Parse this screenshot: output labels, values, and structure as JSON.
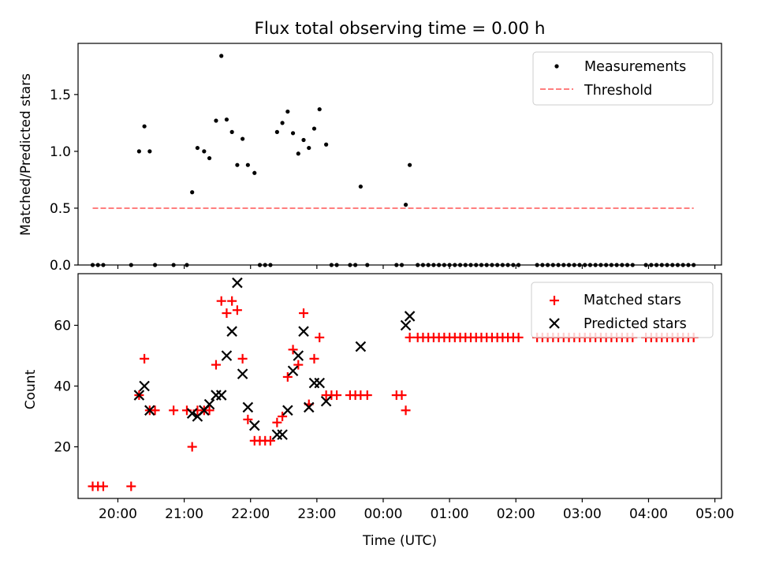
{
  "chart_data": [
    {
      "type": "scatter",
      "title": "Flux total observing time = 0.00 h",
      "xlabel": "",
      "ylabel": "Matched/Predicted stars",
      "xlim": [
        -0.6,
        9.1
      ],
      "ylim": [
        0,
        1.95
      ],
      "x_ticks": [
        0,
        1,
        2,
        3,
        4,
        5,
        6,
        7,
        8,
        9
      ],
      "y_ticks": [
        0.0,
        0.5,
        1.0,
        1.5
      ],
      "y_tick_labels": [
        "0.0",
        "0.5",
        "1.0",
        "1.5"
      ],
      "legend": {
        "position": "top-right",
        "entries": [
          {
            "label": "Measurements",
            "marker": "dot",
            "color": "#000000"
          },
          {
            "label": "Threshold",
            "marker": "dashed-line",
            "color": "#ff7f7f"
          }
        ]
      },
      "threshold": {
        "value": 0.5,
        "x_start": -0.38,
        "x_end": 8.68,
        "color": "#ff7f7f"
      },
      "series": [
        {
          "name": "Measurements",
          "color": "#000000",
          "points": [
            [
              -0.38,
              0
            ],
            [
              -0.3,
              0
            ],
            [
              -0.22,
              0
            ],
            [
              0.2,
              0
            ],
            [
              0.32,
              1.0
            ],
            [
              0.4,
              1.22
            ],
            [
              0.48,
              1.0
            ],
            [
              0.56,
              0
            ],
            [
              0.84,
              0
            ],
            [
              1.04,
              0
            ],
            [
              1.12,
              0.64
            ],
            [
              1.2,
              1.03
            ],
            [
              1.3,
              1.0
            ],
            [
              1.38,
              0.94
            ],
            [
              1.48,
              1.27
            ],
            [
              1.56,
              1.84
            ],
            [
              1.64,
              1.28
            ],
            [
              1.72,
              1.17
            ],
            [
              1.8,
              0.88
            ],
            [
              1.88,
              1.11
            ],
            [
              1.96,
              0.88
            ],
            [
              2.06,
              0.81
            ],
            [
              2.14,
              0
            ],
            [
              2.22,
              0
            ],
            [
              2.3,
              0
            ],
            [
              2.4,
              1.17
            ],
            [
              2.48,
              1.25
            ],
            [
              2.56,
              1.35
            ],
            [
              2.64,
              1.16
            ],
            [
              2.72,
              0.98
            ],
            [
              2.8,
              1.1
            ],
            [
              2.88,
              1.03
            ],
            [
              2.96,
              1.2
            ],
            [
              3.04,
              1.37
            ],
            [
              3.14,
              1.06
            ],
            [
              3.22,
              0
            ],
            [
              3.3,
              0
            ],
            [
              3.5,
              0
            ],
            [
              3.58,
              0
            ],
            [
              3.66,
              0.69
            ],
            [
              3.76,
              0
            ],
            [
              4.2,
              0
            ],
            [
              4.28,
              0
            ],
            [
              4.34,
              0.53
            ],
            [
              4.4,
              0.88
            ],
            [
              4.52,
              0
            ],
            [
              4.6,
              0
            ],
            [
              4.68,
              0
            ],
            [
              4.76,
              0
            ],
            [
              4.84,
              0
            ],
            [
              4.92,
              0
            ],
            [
              5.0,
              0
            ],
            [
              5.08,
              0
            ],
            [
              5.16,
              0
            ],
            [
              5.24,
              0
            ],
            [
              5.32,
              0
            ],
            [
              5.4,
              0
            ],
            [
              5.48,
              0
            ],
            [
              5.56,
              0
            ],
            [
              5.64,
              0
            ],
            [
              5.72,
              0
            ],
            [
              5.8,
              0
            ],
            [
              5.88,
              0
            ],
            [
              5.96,
              0
            ],
            [
              6.04,
              0
            ],
            [
              6.32,
              0
            ],
            [
              6.4,
              0
            ],
            [
              6.48,
              0
            ],
            [
              6.56,
              0
            ],
            [
              6.64,
              0
            ],
            [
              6.72,
              0
            ],
            [
              6.8,
              0
            ],
            [
              6.88,
              0
            ],
            [
              6.96,
              0
            ],
            [
              7.04,
              0
            ],
            [
              7.12,
              0
            ],
            [
              7.2,
              0
            ],
            [
              7.28,
              0
            ],
            [
              7.36,
              0
            ],
            [
              7.44,
              0
            ],
            [
              7.52,
              0
            ],
            [
              7.6,
              0
            ],
            [
              7.68,
              0
            ],
            [
              7.76,
              0
            ],
            [
              7.96,
              0
            ],
            [
              8.04,
              0
            ],
            [
              8.12,
              0
            ],
            [
              8.2,
              0
            ],
            [
              8.28,
              0
            ],
            [
              8.36,
              0
            ],
            [
              8.44,
              0
            ],
            [
              8.52,
              0
            ],
            [
              8.6,
              0
            ],
            [
              8.68,
              0
            ]
          ]
        }
      ]
    },
    {
      "type": "scatter",
      "title": "",
      "xlabel": "Time (UTC)",
      "ylabel": "Count",
      "xlim": [
        -0.6,
        9.1
      ],
      "ylim": [
        3,
        77
      ],
      "x_ticks": [
        0,
        1,
        2,
        3,
        4,
        5,
        6,
        7,
        8,
        9
      ],
      "x_tick_labels": [
        "20:00",
        "21:00",
        "22:00",
        "23:00",
        "00:00",
        "01:00",
        "02:00",
        "03:00",
        "04:00",
        "05:00"
      ],
      "y_ticks": [
        20,
        40,
        60
      ],
      "y_tick_labels": [
        "20",
        "40",
        "60"
      ],
      "legend": {
        "position": "top-right",
        "entries": [
          {
            "label": "Matched stars",
            "marker": "plus",
            "color": "#ff0000"
          },
          {
            "label": "Predicted stars",
            "marker": "x",
            "color": "#000000"
          }
        ]
      },
      "series": [
        {
          "name": "Matched stars",
          "color": "#ff0000",
          "marker": "plus",
          "points": [
            [
              -0.38,
              7
            ],
            [
              -0.3,
              7
            ],
            [
              -0.22,
              7
            ],
            [
              0.2,
              7
            ],
            [
              0.32,
              37
            ],
            [
              0.4,
              49
            ],
            [
              0.48,
              32
            ],
            [
              0.56,
              32
            ],
            [
              0.84,
              32
            ],
            [
              1.04,
              32
            ],
            [
              1.12,
              20
            ],
            [
              1.2,
              32
            ],
            [
              1.3,
              32
            ],
            [
              1.38,
              32
            ],
            [
              1.48,
              47
            ],
            [
              1.56,
              68
            ],
            [
              1.64,
              64
            ],
            [
              1.72,
              68
            ],
            [
              1.8,
              65
            ],
            [
              1.88,
              49
            ],
            [
              1.96,
              29
            ],
            [
              2.06,
              22
            ],
            [
              2.14,
              22
            ],
            [
              2.22,
              22
            ],
            [
              2.3,
              22
            ],
            [
              2.4,
              28
            ],
            [
              2.48,
              30
            ],
            [
              2.56,
              43
            ],
            [
              2.64,
              52
            ],
            [
              2.72,
              47
            ],
            [
              2.8,
              64
            ],
            [
              2.88,
              34
            ],
            [
              2.96,
              49
            ],
            [
              3.04,
              56
            ],
            [
              3.14,
              37
            ],
            [
              3.22,
              37
            ],
            [
              3.3,
              37
            ],
            [
              3.5,
              37
            ],
            [
              3.58,
              37
            ],
            [
              3.66,
              37
            ],
            [
              3.76,
              37
            ],
            [
              4.2,
              37
            ],
            [
              4.28,
              37
            ],
            [
              4.34,
              32
            ],
            [
              4.4,
              56
            ],
            [
              4.52,
              56
            ],
            [
              4.6,
              56
            ],
            [
              4.68,
              56
            ],
            [
              4.76,
              56
            ],
            [
              4.84,
              56
            ],
            [
              4.92,
              56
            ],
            [
              5.0,
              56
            ],
            [
              5.08,
              56
            ],
            [
              5.16,
              56
            ],
            [
              5.24,
              56
            ],
            [
              5.32,
              56
            ],
            [
              5.4,
              56
            ],
            [
              5.48,
              56
            ],
            [
              5.56,
              56
            ],
            [
              5.64,
              56
            ],
            [
              5.72,
              56
            ],
            [
              5.8,
              56
            ],
            [
              5.88,
              56
            ],
            [
              5.96,
              56
            ],
            [
              6.04,
              56
            ],
            [
              6.32,
              56
            ],
            [
              6.4,
              56
            ],
            [
              6.48,
              56
            ],
            [
              6.56,
              56
            ],
            [
              6.64,
              56
            ],
            [
              6.72,
              56
            ],
            [
              6.8,
              56
            ],
            [
              6.88,
              56
            ],
            [
              6.96,
              56
            ],
            [
              7.04,
              56
            ],
            [
              7.12,
              56
            ],
            [
              7.2,
              56
            ],
            [
              7.28,
              56
            ],
            [
              7.36,
              56
            ],
            [
              7.44,
              56
            ],
            [
              7.52,
              56
            ],
            [
              7.6,
              56
            ],
            [
              7.68,
              56
            ],
            [
              7.76,
              56
            ],
            [
              7.96,
              56
            ],
            [
              8.04,
              56
            ],
            [
              8.12,
              56
            ],
            [
              8.2,
              56
            ],
            [
              8.28,
              56
            ],
            [
              8.36,
              56
            ],
            [
              8.44,
              56
            ],
            [
              8.52,
              56
            ],
            [
              8.6,
              56
            ],
            [
              8.68,
              56
            ]
          ]
        },
        {
          "name": "Predicted stars",
          "color": "#000000",
          "marker": "x",
          "points": [
            [
              0.32,
              37
            ],
            [
              0.4,
              40
            ],
            [
              0.48,
              32
            ],
            [
              1.12,
              31
            ],
            [
              1.2,
              30
            ],
            [
              1.3,
              32
            ],
            [
              1.38,
              34
            ],
            [
              1.48,
              37
            ],
            [
              1.56,
              37
            ],
            [
              1.64,
              50
            ],
            [
              1.72,
              58
            ],
            [
              1.8,
              74
            ],
            [
              1.88,
              44
            ],
            [
              1.96,
              33
            ],
            [
              2.06,
              27
            ],
            [
              2.4,
              24
            ],
            [
              2.48,
              24
            ],
            [
              2.56,
              32
            ],
            [
              2.64,
              45
            ],
            [
              2.72,
              50
            ],
            [
              2.8,
              58
            ],
            [
              2.88,
              33
            ],
            [
              2.96,
              41
            ],
            [
              3.04,
              41
            ],
            [
              3.14,
              35
            ],
            [
              3.66,
              53
            ],
            [
              4.34,
              60
            ],
            [
              4.4,
              63
            ]
          ]
        }
      ]
    }
  ]
}
